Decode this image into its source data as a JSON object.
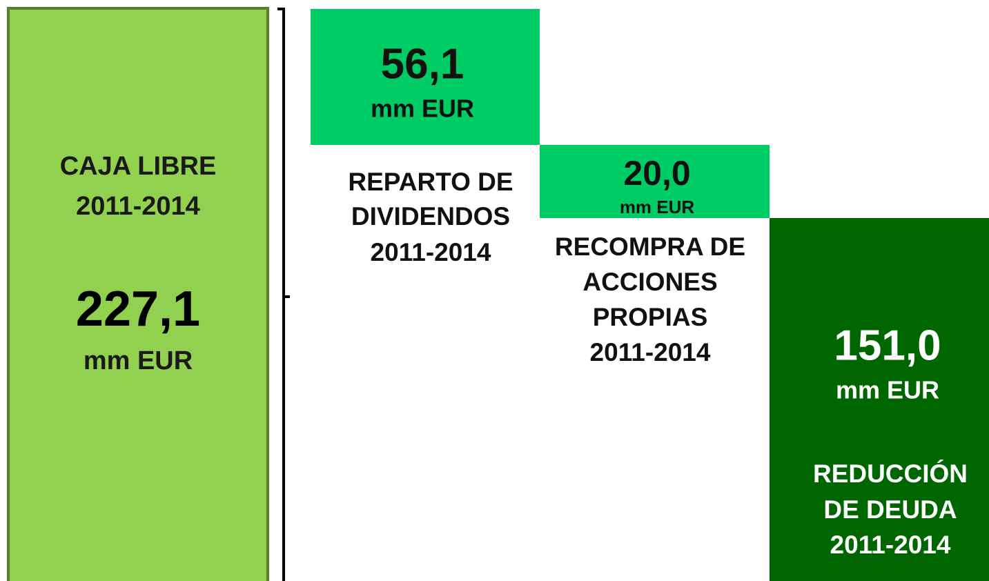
{
  "total": {
    "label": [
      "CAJA LIBRE",
      "2011-2014"
    ],
    "value": "227,1",
    "unit": "mm EUR"
  },
  "dividends": {
    "value": "56,1",
    "unit": "mm EUR",
    "label": [
      "REPARTO DE",
      "DIVIDENDOS",
      "2011-2014"
    ]
  },
  "buyback": {
    "value": "20,0",
    "unit": "mm EUR",
    "label": [
      "RECOMPRA DE",
      "ACCIONES",
      "PROPIAS",
      "2011-2014"
    ]
  },
  "debt": {
    "value": "151,0",
    "unit": "mm EUR",
    "label": [
      "REDUCCIÓN",
      "DE DEUDA",
      "2011-2014"
    ]
  }
}
